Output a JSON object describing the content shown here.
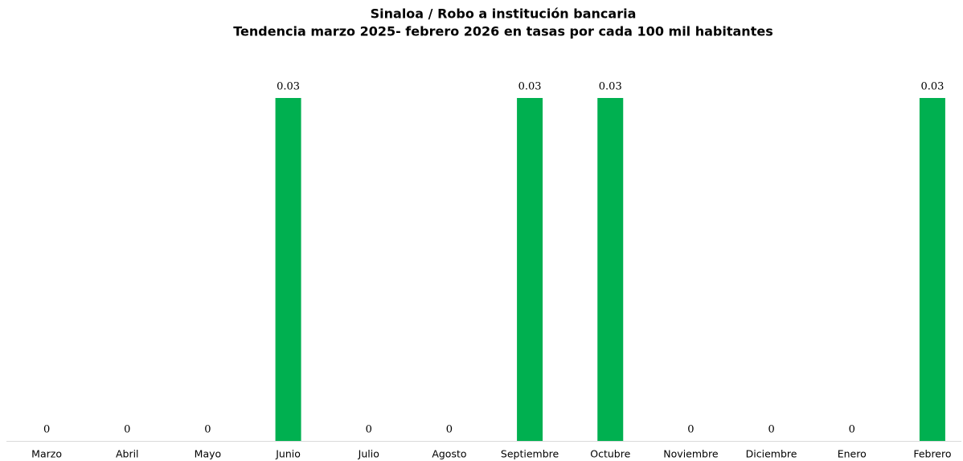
{
  "chart_data": {
    "type": "bar",
    "title": "Sinaloa / Robo a institución bancaria",
    "subtitle": "Tendencia marzo 2025- febrero 2026 en tasas por cada  100 mil habitantes",
    "categories": [
      "Marzo",
      "Abril",
      "Mayo",
      "Junio",
      "Julio",
      "Agosto",
      "Septiembre",
      "Octubre",
      "Noviembre",
      "Diciembre",
      "Enero",
      "Febrero"
    ],
    "values": [
      0,
      0,
      0,
      0.03,
      0,
      0,
      0.03,
      0.03,
      0,
      0,
      0,
      0.03
    ],
    "color": "#00b050",
    "ylim": [
      0,
      0.03
    ]
  }
}
